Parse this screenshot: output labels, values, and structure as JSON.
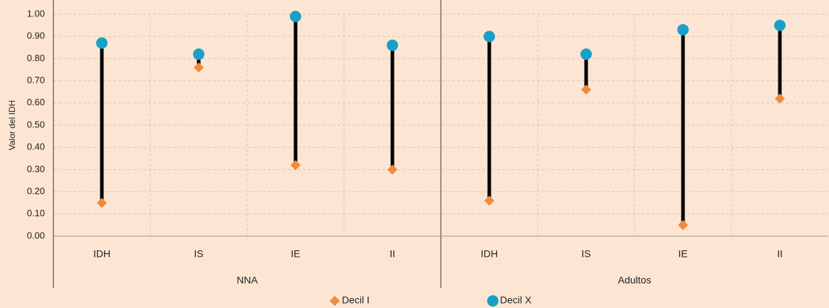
{
  "chart_data": {
    "type": "dumbbell",
    "ylabel": "Valor del IDH",
    "categories": [
      "IDH",
      "IS",
      "IE",
      "II",
      "IDH",
      "IS",
      "IE",
      "II"
    ],
    "groups": [
      "NNA",
      "Adultos"
    ],
    "series": [
      {
        "name": "Decil I",
        "color": "#f28a3a",
        "marker": "diamond",
        "values": [
          0.15,
          0.76,
          0.32,
          0.3,
          0.16,
          0.66,
          0.05,
          0.62
        ]
      },
      {
        "name": "Decil X",
        "color": "#1aa0c8",
        "marker": "circle",
        "values": [
          0.87,
          0.82,
          0.99,
          0.86,
          0.9,
          0.82,
          0.93,
          0.95
        ]
      }
    ],
    "ylim": [
      0,
      1
    ],
    "yticks": [
      {
        "value": 0,
        "label": "0.00"
      },
      {
        "value": 0.1,
        "label": "0.10"
      },
      {
        "value": 0.2,
        "label": "0.20"
      },
      {
        "value": 0.3,
        "label": "0.30"
      },
      {
        "value": 0.4,
        "label": "0.40"
      },
      {
        "value": 0.5,
        "label": "0.50"
      },
      {
        "value": 0.6,
        "label": "0.60"
      },
      {
        "value": 0.7,
        "label": "0.70"
      },
      {
        "value": 0.8,
        "label": "0.80"
      },
      {
        "value": 0.9,
        "label": "0.90"
      },
      {
        "value": 1,
        "label": "1.00"
      }
    ],
    "grid": true,
    "legend": "bottom"
  }
}
